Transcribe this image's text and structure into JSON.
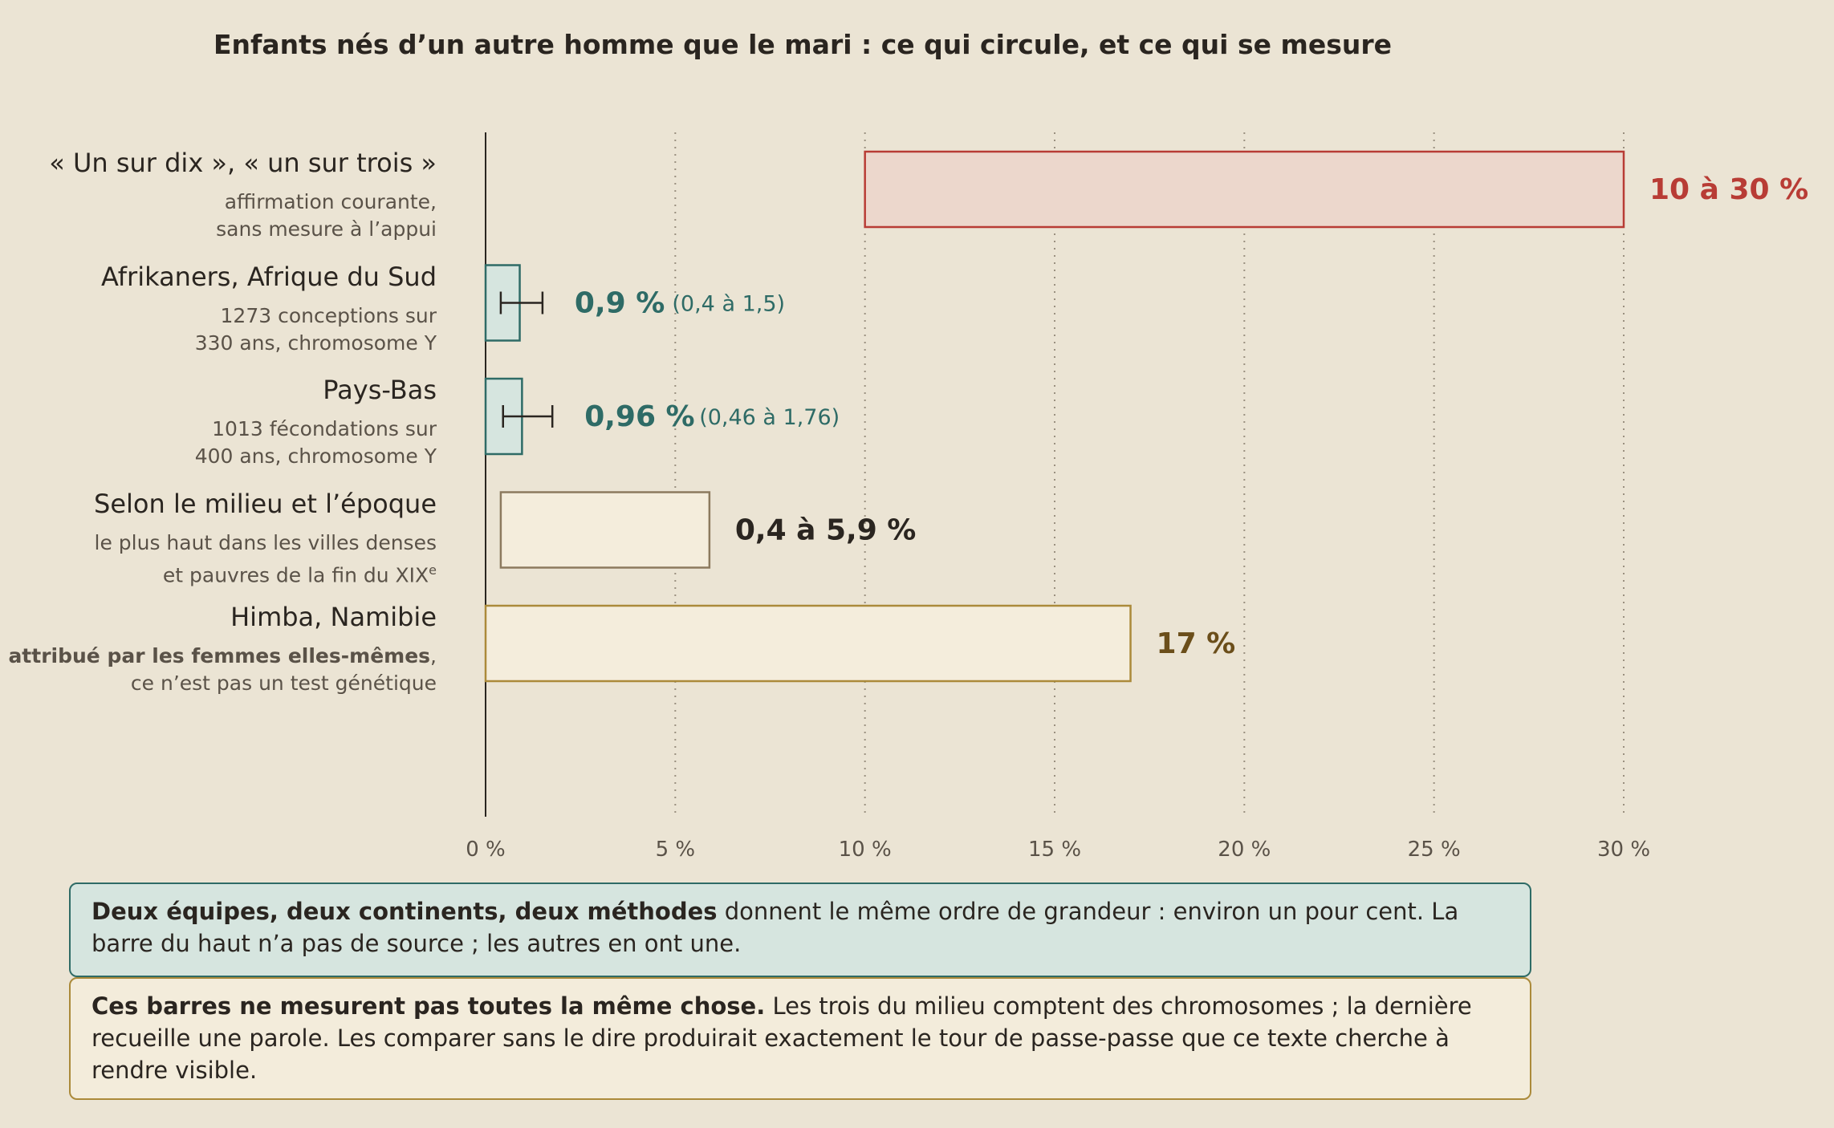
{
  "title": "Enfants nés d’un autre homme que le mari : ce qui circule, et ce qui se mesure",
  "chart_data": {
    "type": "bar",
    "title": "Enfants nés d’un autre homme que le mari : ce qui circule, et ce qui se mesure",
    "xlim": [
      0,
      30
    ],
    "x_ticks": [
      "0 %",
      "5 %",
      "10 %",
      "15 %",
      "20 %",
      "25 %",
      "30 %"
    ],
    "x_tick_values": [
      0,
      5,
      10,
      15,
      20,
      25,
      30
    ],
    "grid": "vertical dotted",
    "categories": [
      {
        "label": "« Un sur dix », « un sur trois »",
        "sub": [
          "affirmation courante,",
          "sans mesure à l’appui"
        ],
        "start": 10,
        "end": 30,
        "error": null,
        "value_label": "10 à 30 %",
        "range_label": "",
        "fill": "#ecd7cc",
        "stroke": "#b83c35",
        "text_color": "#b83c35"
      },
      {
        "label": "Afrikaners, Afrique du Sud",
        "sub": [
          "1273 conceptions sur",
          "330 ans, chromosome Y"
        ],
        "start": 0,
        "end": 0.9,
        "error": [
          0.4,
          1.5
        ],
        "value_label": "0,9 %",
        "range_label": "(0,4 à 1,5)",
        "fill": "#d6e5df",
        "stroke": "#2e6b66",
        "text_color": "#2e6b66"
      },
      {
        "label": "Pays-Bas",
        "sub": [
          "1013 fécondations sur",
          "400 ans, chromosome Y"
        ],
        "start": 0,
        "end": 0.96,
        "error": [
          0.46,
          1.76
        ],
        "value_label": "0,96 %",
        "range_label": "(0,46 à 1,76)",
        "fill": "#d6e5df",
        "stroke": "#2e6b66",
        "text_color": "#2e6b66"
      },
      {
        "label": "Selon le milieu et l’époque",
        "sub": [
          "le plus haut dans les villes denses",
          "et pauvres de la fin du XIX"
        ],
        "sub_sup": "e",
        "start": 0.4,
        "end": 5.9,
        "error": null,
        "value_label": "0,4 à 5,9 %",
        "range_label": "",
        "fill": "#f4eddc",
        "stroke": "#8c7a5e",
        "text_color": "#2a2520"
      },
      {
        "label": "Himba, Namibie",
        "sub_bold": "attribué par les femmes elles-mêmes",
        "sub_after_bold": ",",
        "sub": [
          "",
          "ce n’est pas un test génétique"
        ],
        "start": 0,
        "end": 17,
        "error": null,
        "value_label": "17 %",
        "range_label": "",
        "fill": "#f4eddc",
        "stroke": "#ab8a3a",
        "text_color": "#6b4e1a"
      }
    ],
    "colors": {
      "axis": "#2a2520",
      "grid": "#9a9080",
      "tick_text": "#5a5248"
    }
  },
  "notes": {
    "note1_bold": "Deux équipes, deux continents, deux méthodes",
    "note1_text": " donnent le même ordre de grandeur : environ un pour cent. La barre du haut n’a pas de source ; les autres en ont une.",
    "note2_bold": "Ces barres ne mesurent pas toutes la même chose.",
    "note2_text": " Les trois du milieu comptent des chromosomes ; la dernière recueille une parole. Les comparer sans le dire produirait exactement le tour de passe-passe que ce texte cherche à rendre visible."
  }
}
